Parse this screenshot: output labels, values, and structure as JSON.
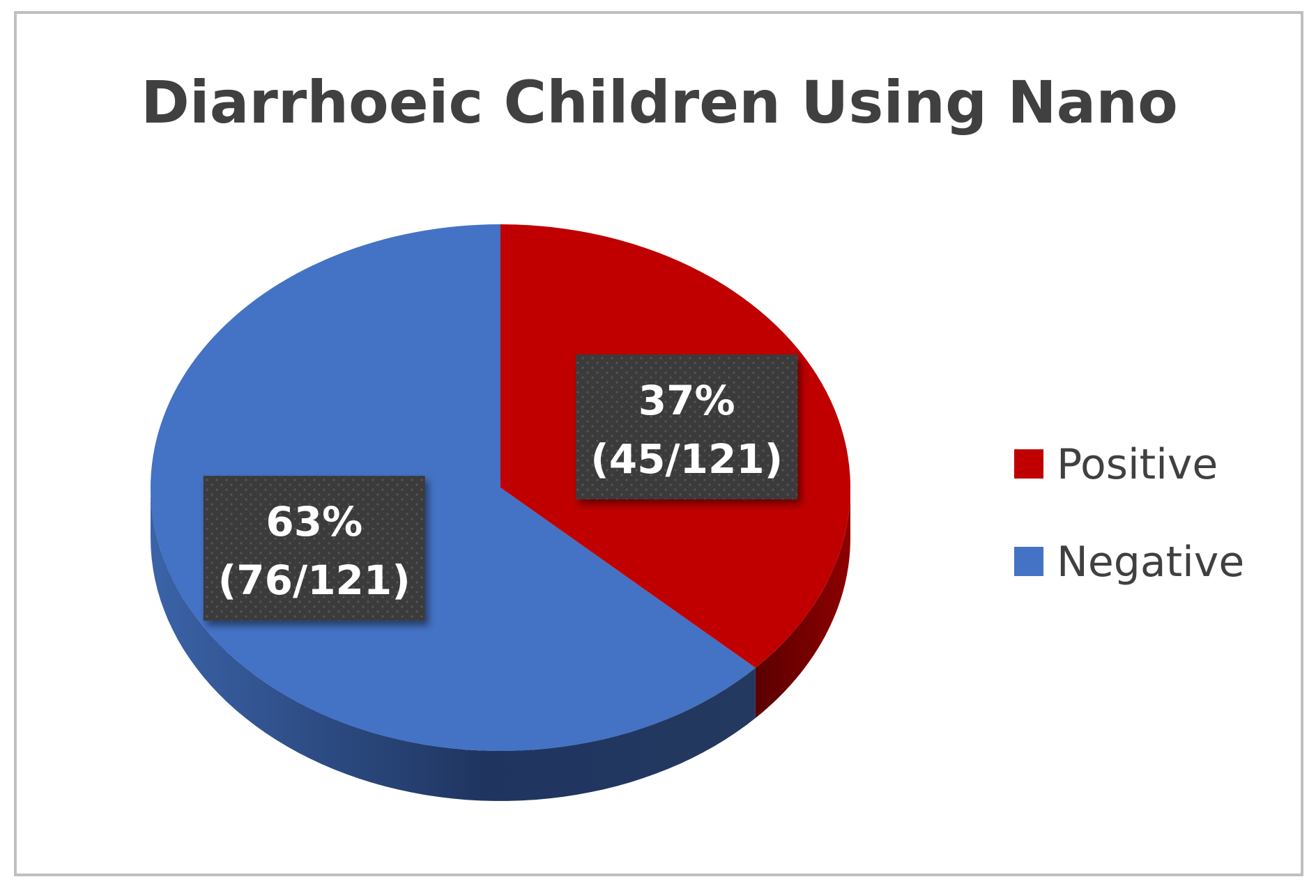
{
  "chart_data": {
    "type": "pie",
    "title": "Diarrhoeic Children Using Nano",
    "slices": [
      {
        "name": "Positive",
        "percent": 37,
        "value": 45,
        "total": 121,
        "percent_label": "37%",
        "count_label": "(45/121)",
        "color": "#C00000",
        "side_color": "#7A0000"
      },
      {
        "name": "Negative",
        "percent": 63,
        "value": 76,
        "total": 121,
        "percent_label": "63%",
        "count_label": "(76/121)",
        "color": "#4472C4",
        "side_color": "#2A4679"
      }
    ],
    "legend_position": "right",
    "style": "3d"
  },
  "colors": {
    "frame_border": "#BFBFBF",
    "title_text": "#404040",
    "label_box": "#3A3A3A",
    "label_text": "#FFFFFF",
    "legend_text": "#404040"
  }
}
